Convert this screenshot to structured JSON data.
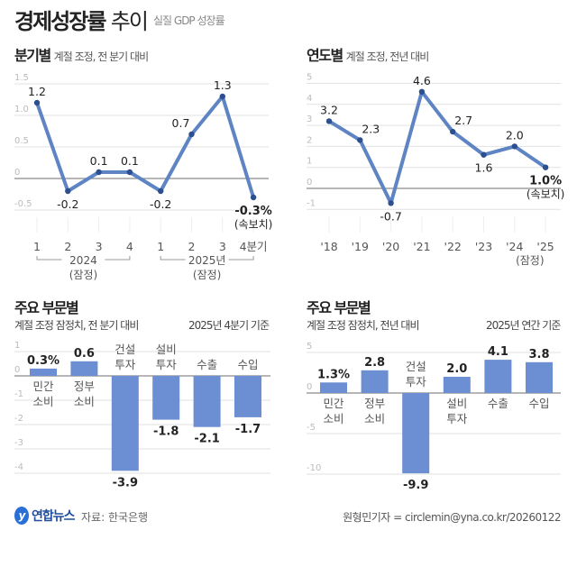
{
  "header": {
    "title_bold": "경제성장률",
    "title_light": "추이",
    "unit": "실질 GDP 성장률"
  },
  "colors": {
    "line": "#5f84c4",
    "dot": "#2c4f8f",
    "bar": "#6b8fd2",
    "grid": "#e2e2e2",
    "zero": "#8a8a8a"
  },
  "chart_data": [
    {
      "type": "line",
      "title": "분기별",
      "subtitle": "계절 조정, 전 분기 대비",
      "categories": [
        "1",
        "2",
        "3",
        "4",
        "1",
        "2",
        "3",
        "4분기"
      ],
      "groups": [
        {
          "label": "2024",
          "note": "(잠정)"
        },
        {
          "label": "2025년",
          "note": "(잠정)"
        }
      ],
      "values": [
        1.2,
        -0.2,
        0.1,
        0.1,
        -0.2,
        0.7,
        1.3,
        -0.3
      ],
      "data_labels": [
        "1.2",
        "-0.2",
        "0.1",
        "0.1",
        "-0.2",
        "0.7",
        "1.3",
        "-0.3%"
      ],
      "last_note": "(속보치)",
      "yticks": [
        "1.5",
        "1.0",
        "0.5",
        "0",
        "-0.5"
      ],
      "ylim": [
        -0.5,
        1.5
      ],
      "grid": true
    },
    {
      "type": "line",
      "title": "연도별",
      "subtitle": "계절 조정, 전년 대비",
      "categories": [
        "'18",
        "'19",
        "'20",
        "'21",
        "'22",
        "'23",
        "'24",
        "'25"
      ],
      "values": [
        3.2,
        2.3,
        -0.7,
        4.6,
        2.7,
        1.6,
        2.0,
        1.0
      ],
      "data_labels": [
        "3.2",
        "2.3",
        "-0.7",
        "4.6",
        "2.7",
        "1.6",
        "2.0",
        "1.0%"
      ],
      "last_note": "(속보치)",
      "category_note": "(잠정)",
      "yticks": [
        "5",
        "4",
        "3",
        "2",
        "1",
        "0",
        "-1"
      ],
      "ylim": [
        -1,
        5
      ],
      "grid": true
    },
    {
      "type": "bar",
      "title": "주요 부문별",
      "subtitle": "계절 조정 잠정치, 전 분기 대비",
      "basis": "2025년 4분기 기준",
      "categories": [
        [
          "민간",
          "소비"
        ],
        [
          "정부",
          "소비"
        ],
        [
          "건설",
          "투자"
        ],
        [
          "설비",
          "투자"
        ],
        [
          "수출"
        ],
        [
          "수입"
        ]
      ],
      "values": [
        0.3,
        0.6,
        -3.9,
        -1.8,
        -2.1,
        -1.7
      ],
      "data_labels": [
        "0.3%",
        "0.6",
        "-3.9",
        "-1.8",
        "-2.1",
        "-1.7"
      ],
      "yticks": [
        "1",
        "0",
        "-1",
        "-2",
        "-3",
        "-4"
      ],
      "ylim": [
        -4,
        1
      ],
      "grid": true
    },
    {
      "type": "bar",
      "title": "주요 부문별",
      "subtitle": "계절 조정 잠정치, 전년 대비",
      "basis": "2025년 연간 기준",
      "categories": [
        [
          "민간",
          "소비"
        ],
        [
          "정부",
          "소비"
        ],
        [
          "건설",
          "투자"
        ],
        [
          "설비",
          "투자"
        ],
        [
          "수출"
        ],
        [
          "수입"
        ]
      ],
      "values": [
        1.3,
        2.8,
        -9.9,
        2.0,
        4.1,
        3.8
      ],
      "data_labels": [
        "1.3%",
        "2.8",
        "-9.9",
        "2.0",
        "4.1",
        "3.8"
      ],
      "yticks": [
        "5",
        "0",
        "-5",
        "-10"
      ],
      "ylim": [
        -10,
        5
      ],
      "grid": true
    }
  ],
  "footer": {
    "logo": "연합뉴스",
    "source": "자료: 한국은행",
    "credit": "원형민기자 = circlemin@yna.co.kr/20260122"
  }
}
